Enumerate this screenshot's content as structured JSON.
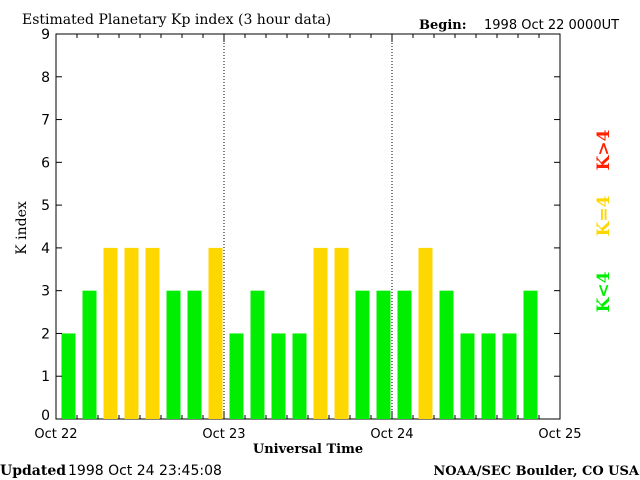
{
  "header": {
    "title": "Estimated Planetary Kp index (3 hour data)",
    "begin_label": "Begin:",
    "begin_value": "1998 Oct 22 0000UT"
  },
  "footer": {
    "updated_label": "Updated",
    "updated_value": "1998 Oct 24 23:45:08",
    "source": "NOAA/SEC Boulder, CO USA"
  },
  "legend": {
    "high": "K>4",
    "mid": "K=4",
    "low": "K<4"
  },
  "colors": {
    "low": "#00ee00",
    "mid": "#ffd700",
    "high": "#ff2200",
    "axis": "#000000"
  },
  "chart_data": {
    "type": "bar",
    "title": "Estimated Planetary Kp index (3 hour data)",
    "xlabel": "Universal Time",
    "ylabel": "K index",
    "ylim": [
      0,
      9
    ],
    "yticks": [
      0,
      1,
      2,
      3,
      4,
      5,
      6,
      7,
      8,
      9
    ],
    "xticks": [
      "Oct 22",
      "Oct 23",
      "Oct 24",
      "Oct 25"
    ],
    "interval_hours": 3,
    "values": [
      2,
      3,
      4,
      4,
      4,
      3,
      3,
      4,
      2,
      3,
      2,
      2,
      4,
      4,
      3,
      3,
      3,
      4,
      3,
      2,
      2,
      2,
      3
    ]
  }
}
